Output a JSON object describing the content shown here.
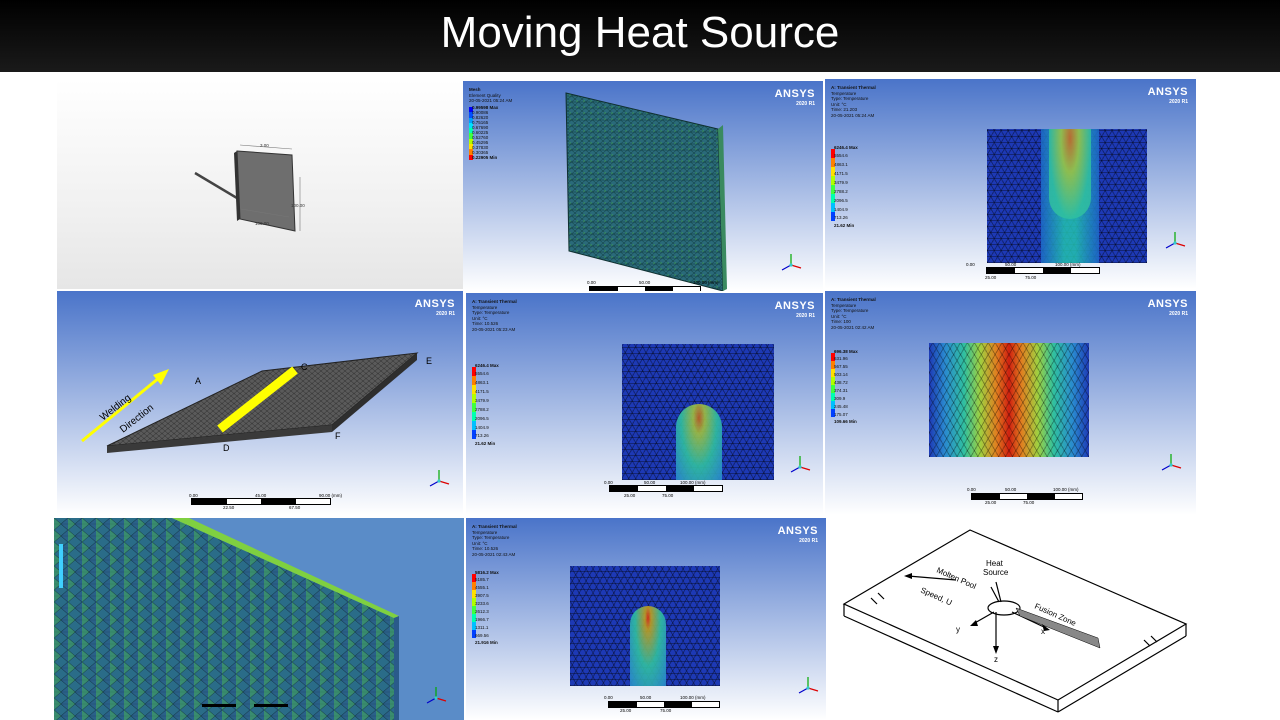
{
  "slide": {
    "title": "Moving Heat Source"
  },
  "ansys": {
    "brand": "ANSYS",
    "version": "2020 R1"
  },
  "panel_cad": {
    "dims": [
      "100.00",
      "100.00",
      "3.00"
    ]
  },
  "panel_mesh": {
    "info": [
      "Mesh",
      "Element Quality",
      "20-05-2021 05:24 AM"
    ],
    "legend": [
      "0.99598 Max",
      "0.90086",
      "0.82620",
      "0.75165",
      "0.67690",
      "0.60225",
      "0.52760",
      "0.45295",
      "0.37830",
      "0.30365",
      "0.22905 Min"
    ],
    "scale": [
      "0.00",
      "50.00",
      "100.00 (mm)"
    ]
  },
  "panel_temp1": {
    "info": [
      "A: Transient Thermal",
      "Temperature",
      "Type: Temperature",
      "Unit: °C",
      "Time: 21.203",
      "20-05-2021 05:24 AM"
    ],
    "legend": [
      "6246.4 Max",
      "5554.6",
      "4863.1",
      "4171.5",
      "3479.9",
      "2788.2",
      "2096.5",
      "1404.9",
      "713.26",
      "21.62 Min"
    ],
    "scale_top": [
      "0.00",
      "50.00",
      "100.00 (mm)"
    ],
    "scale_bot": [
      "25.00",
      "75.00"
    ]
  },
  "panel_weld": {
    "arrow_label": [
      "Welding",
      "Direction"
    ],
    "points": [
      "A",
      "C",
      "E",
      "D",
      "F"
    ],
    "scale_top": [
      "0.00",
      "45.00",
      "90.00 (mm)"
    ],
    "scale_bot": [
      "22.50",
      "67.50"
    ]
  },
  "panel_temp2": {
    "info": [
      "A: Transient Thermal",
      "Temperature",
      "Type: Temperature",
      "Unit: °C",
      "Time: 10.526",
      "20-05-2021 05:23 AM"
    ],
    "legend": [
      "6246.4 Max",
      "5554.6",
      "4863.1",
      "4171.5",
      "3479.9",
      "2788.2",
      "2096.5",
      "1404.9",
      "713.26",
      "21.62 Min"
    ],
    "scale_top": [
      "0.00",
      "50.00",
      "100.00 (mm)"
    ],
    "scale_bot": [
      "25.00",
      "75.00"
    ]
  },
  "panel_temp3": {
    "info": [
      "A: Transient Thermal",
      "Temperature",
      "Type: Temperature",
      "Unit: °C",
      "Time: 100",
      "20-05-2021 02:42 AM"
    ],
    "legend": [
      "696.38 Max",
      "631.96",
      "567.55",
      "503.14",
      "438.72",
      "374.31",
      "309.9",
      "245.48",
      "175.07",
      "109.66 Min"
    ],
    "scale_top": [
      "0.00",
      "50.00",
      "100.00 (mm)"
    ],
    "scale_bot": [
      "25.00",
      "75.00"
    ]
  },
  "panel_temp4": {
    "info": [
      "A: Transient Thermal",
      "Temperature",
      "Type: Temperature",
      "Unit: °C",
      "Time: 10.526",
      "20-05-2021 02:43 AM"
    ],
    "legend": [
      "5816.2 Max",
      "5185.7",
      "4555.1",
      "3907.5",
      "3233.6",
      "2612.3",
      "1966.7",
      "1311.1",
      "669.56",
      "21.916 Min"
    ],
    "scale_top": [
      "0.00",
      "50.00",
      "100.00 (mm)"
    ],
    "scale_bot": [
      "25.00",
      "75.00"
    ]
  },
  "diagram": {
    "labels": [
      "Heat",
      "Source",
      "Molten Pool",
      "Speed, U",
      "Fusion Zone",
      "x",
      "y",
      "z"
    ]
  },
  "colors": {
    "title_bg": "#000000",
    "ansys_top": "#4a74c9",
    "mesh_blue": "#1d39b5"
  }
}
